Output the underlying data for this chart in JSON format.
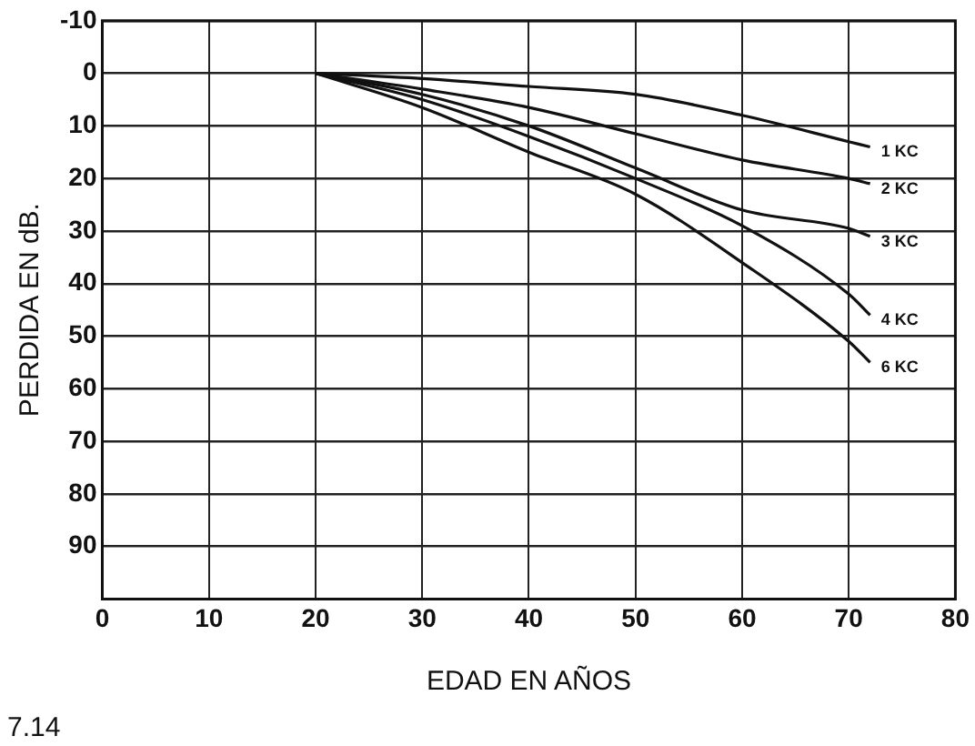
{
  "chart_data": {
    "type": "line",
    "xlabel": "EDAD EN AÑOS",
    "ylabel": "PERDIDA EN dB.",
    "xlim": [
      0,
      80
    ],
    "xticks": [
      0,
      10,
      20,
      30,
      40,
      50,
      60,
      70,
      80
    ],
    "ylim": [
      100,
      -10
    ],
    "yticks": [
      -10,
      0,
      10,
      20,
      30,
      40,
      50,
      60,
      70,
      80,
      90
    ],
    "grid": true,
    "legend": false,
    "marker": "none",
    "line_style": "solid",
    "x": [
      20,
      30,
      40,
      50,
      60,
      70,
      72
    ],
    "series": [
      {
        "name": "1 KC",
        "color": "#111111",
        "values": [
          0,
          1,
          2.5,
          4,
          8,
          13,
          14
        ]
      },
      {
        "name": "2 KC",
        "color": "#111111",
        "values": [
          0,
          3,
          6.5,
          11.5,
          16.5,
          20,
          21
        ]
      },
      {
        "name": "3 KC",
        "color": "#111111",
        "values": [
          0,
          4,
          10,
          18,
          26,
          29.5,
          31
        ]
      },
      {
        "name": "4 KC",
        "color": "#111111",
        "values": [
          0,
          5,
          12,
          20,
          29,
          42,
          46
        ]
      },
      {
        "name": "6 KC",
        "color": "#111111",
        "values": [
          0,
          6.5,
          15,
          23,
          36,
          51,
          55
        ]
      }
    ],
    "annotations": [
      "7.14"
    ]
  }
}
